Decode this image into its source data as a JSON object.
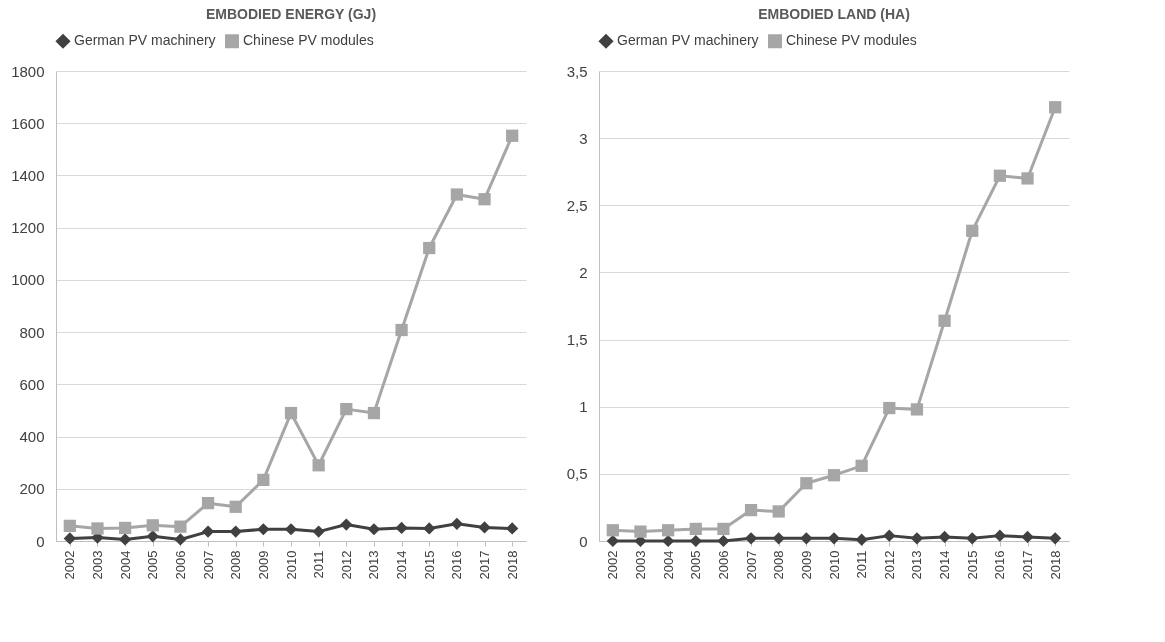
{
  "chart_data": [
    {
      "type": "line",
      "title": "EMBODIED ENERGY (GJ)",
      "categories": [
        "2002",
        "2003",
        "2004",
        "2005",
        "2006",
        "2007",
        "2008",
        "2009",
        "2010",
        "2011",
        "2012",
        "2013",
        "2014",
        "2015",
        "2016",
        "2017",
        "2018"
      ],
      "series": [
        {
          "name": "German PV machinery",
          "color": "#404040",
          "marker": "diamond",
          "values": [
            10,
            13,
            6,
            18,
            6,
            36,
            36,
            45,
            45,
            36,
            63,
            45,
            50,
            48,
            66,
            52,
            48
          ]
        },
        {
          "name": "Chinese PV modules",
          "color": "#a6a6a6",
          "marker": "square",
          "values": [
            58,
            48,
            50,
            60,
            55,
            145,
            131,
            234,
            490,
            290,
            505,
            490,
            808,
            1122,
            1327,
            1309,
            1552
          ]
        }
      ],
      "ylim": [
        0,
        1800
      ],
      "yticks": [
        0,
        200,
        400,
        600,
        800,
        1000,
        1200,
        1400,
        1600,
        1800
      ],
      "grid": "y",
      "legend": "top"
    },
    {
      "type": "line",
      "title": "EMBODIED LAND (HA)",
      "categories": [
        "2002",
        "2003",
        "2004",
        "2005",
        "2006",
        "2007",
        "2008",
        "2009",
        "2010",
        "2011",
        "2012",
        "2013",
        "2014",
        "2015",
        "2016",
        "2017",
        "2018"
      ],
      "series": [
        {
          "name": "German PV machinery",
          "color": "#404040",
          "marker": "diamond",
          "values": [
            0,
            0,
            0,
            0,
            0,
            0.02,
            0.02,
            0.02,
            0.02,
            0.01,
            0.04,
            0.02,
            0.03,
            0.02,
            0.04,
            0.03,
            0.02
          ]
        },
        {
          "name": "Chinese PV modules",
          "color": "#a6a6a6",
          "marker": "square",
          "values": [
            0.08,
            0.07,
            0.08,
            0.09,
            0.09,
            0.23,
            0.22,
            0.43,
            0.49,
            0.56,
            0.99,
            0.98,
            1.64,
            2.31,
            2.72,
            2.7,
            3.23
          ]
        }
      ],
      "ylim": [
        0,
        3.5
      ],
      "yticks": [
        0,
        {
          "value": 0.5,
          "label": "0,5"
        },
        1,
        {
          "value": 1.5,
          "label": "1,5"
        },
        2,
        {
          "value": 2.5,
          "label": "2,5"
        },
        3,
        {
          "value": 3.5,
          "label": "3,5"
        }
      ],
      "grid": "y",
      "legend": "top"
    }
  ]
}
